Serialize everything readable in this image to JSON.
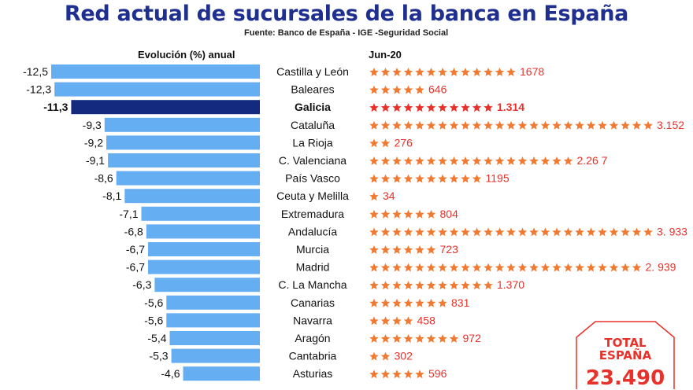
{
  "title": "Red actual de sucursales de la banca en España",
  "source": "Fuente: Banco de España - IGE -Seguridad Social",
  "colors": {
    "bar": "#66aef2",
    "highlight_bar": "#142a7f",
    "star": "#f07a32",
    "red_star": "#e8312a",
    "count": "#e8312a"
  },
  "total": {
    "title_line1": "TOTAL",
    "title_line2": "ESPAÑA",
    "value": "23.490"
  },
  "chart_data": {
    "type": "bar",
    "left_header": "Evolución (%) anual",
    "right_header": "Jun-20",
    "highlight": "Galicia",
    "categories": [
      "Castilla y León",
      "Baleares",
      "Galicia",
      "Cataluña",
      "La Rioja",
      "C. Valenciana",
      "País Vasco",
      "Ceuta y Melilla",
      "Extremadura",
      "Andalucía",
      "Murcia",
      "Madrid",
      "C. La Mancha",
      "Canarias",
      "Navarra",
      "Aragón",
      "Cantabria",
      "Asturias"
    ],
    "series": [
      {
        "values": [
          -12.5,
          -12.3,
          -11.3,
          -9.3,
          -9.2,
          -9.1,
          -8.6,
          -8.1,
          -7.1,
          -6.8,
          -6.7,
          -6.7,
          -6.3,
          -5.6,
          -5.6,
          -5.4,
          -5.3,
          -4.6
        ],
        "labels": [
          "-12,5",
          "-12,3",
          "-11,3",
          "-9,3",
          "-9,2",
          "-9,1",
          "-8,6",
          "-8,1",
          "-7,1",
          "-6,8",
          "-6,7",
          "-6,7",
          "-6,3",
          "-5,6",
          "-5,6",
          "-5,4",
          "-5,3",
          "-4,6"
        ]
      },
      {
        "values": [
          1678,
          646,
          1314,
          3152,
          276,
          2267,
          1195,
          34,
          804,
          3933,
          723,
          2939,
          1370,
          831,
          458,
          972,
          302,
          596
        ],
        "labels": [
          "1678",
          "646",
          "1.314",
          "3.152",
          "276",
          "2.26  7",
          "1195",
          "34",
          "804",
          "3.  933",
          "723",
          "2. 939",
          "1.370",
          "831",
          "458",
          "972",
          "302",
          "596"
        ]
      }
    ]
  }
}
